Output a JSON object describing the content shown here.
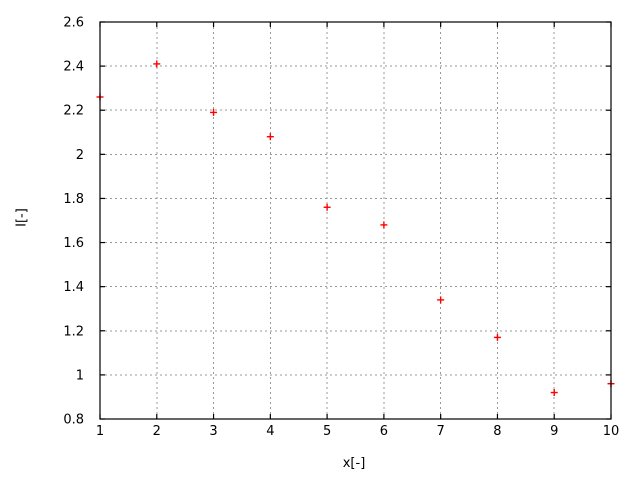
{
  "figure": {
    "background": "#ffffff"
  },
  "chart_data": {
    "type": "scatter",
    "title": "",
    "xlabel": "x[-]",
    "ylabel": "I[-]",
    "x": [
      1,
      2,
      3,
      4,
      5,
      6,
      7,
      8,
      9,
      10
    ],
    "y": [
      2.26,
      2.41,
      2.19,
      2.08,
      1.76,
      1.68,
      1.34,
      1.17,
      0.92,
      0.96
    ],
    "xlim": [
      1,
      10
    ],
    "ylim": [
      0.8,
      2.6
    ],
    "xtick_labels": [
      "1",
      "2",
      "3",
      "4",
      "5",
      "6",
      "7",
      "8",
      "9",
      "10"
    ],
    "ytick_labels": [
      "0.8",
      "1",
      "1.2",
      "1.4",
      "1.6",
      "1.8",
      "2",
      "2.2",
      "2.4",
      "2.6"
    ],
    "grid": "dotted",
    "legend": "none",
    "marker": "plus",
    "marker_color": "#ff0000",
    "grid_color": "#999999",
    "axis_color": "#000000",
    "text_color": "#000000"
  }
}
